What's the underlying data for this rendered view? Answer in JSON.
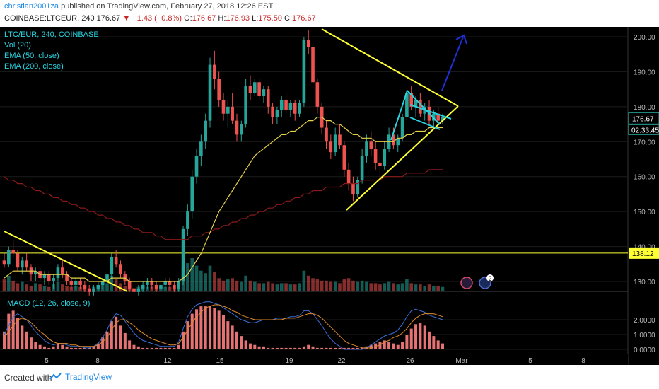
{
  "header": {
    "author": "christian2001za",
    "published": "published on TradingView.com, February 27, 2018 12:26 EST",
    "symbol": "COINBASE:LTCEUR, 240",
    "last": "176.67",
    "change": "▼ −1.43 (−0.8%)",
    "o_label": "O:",
    "o": "176.67",
    "h_label": "H:",
    "h": "176.93",
    "l_label": "L:",
    "l": "175.50",
    "c_label": "C:",
    "c": "176.67"
  },
  "legend": {
    "l1": "LTC/EUR, 240, COINBASE",
    "l2": "Vol (20)",
    "l3": "EMA (50, close)",
    "l4": "EMA (200, close)",
    "macd": "MACD (12, 26, close, 9)"
  },
  "price_axis": {
    "ticks": [
      "200.00",
      "190.00",
      "180.00",
      "170.00",
      "160.00",
      "150.00",
      "140.00",
      "130.00"
    ],
    "current_price": "176.67",
    "countdown": "02:33:45",
    "hline_label": "138.12"
  },
  "macd_axis": {
    "ticks": [
      "2.0000",
      "1.0000",
      "0.0000"
    ]
  },
  "time_axis": {
    "labels": [
      "5",
      "8",
      "12",
      "15",
      "19",
      "22",
      "26",
      "Mar",
      "5",
      "8"
    ]
  },
  "footer": {
    "created": "Created with",
    "brand": "TradingView"
  },
  "colors": {
    "up": "#26a69a",
    "down": "#ef5350",
    "ema50": "#e6d24a",
    "ema200": "#8b1a1a",
    "trend": "#ffff33",
    "flag": "#29d3e0",
    "arrow": "#1f2fd6",
    "macd_hist": "#e57373"
  },
  "chart_data": {
    "type": "candlestick",
    "symbol": "LTC/EUR",
    "ylim": [
      124,
      203
    ],
    "hline": 138.12,
    "candles_ohlc": [
      [
        136,
        138,
        134,
        135
      ],
      [
        135,
        140,
        134,
        139
      ],
      [
        139,
        142,
        137,
        138
      ],
      [
        138,
        139,
        133,
        134
      ],
      [
        134,
        137,
        132,
        136
      ],
      [
        136,
        138,
        133,
        134
      ],
      [
        134,
        135,
        130,
        132
      ],
      [
        132,
        134,
        130,
        133
      ],
      [
        133,
        134,
        130,
        131
      ],
      [
        131,
        133,
        129,
        132
      ],
      [
        132,
        133,
        129,
        130
      ],
      [
        130,
        132,
        128,
        131
      ],
      [
        131,
        135,
        130,
        134
      ],
      [
        134,
        136,
        131,
        132
      ],
      [
        132,
        133,
        129,
        130
      ],
      [
        130,
        131,
        128,
        129
      ],
      [
        129,
        131,
        128,
        130
      ],
      [
        130,
        131,
        128,
        129
      ],
      [
        129,
        130,
        127,
        128
      ],
      [
        128,
        129,
        126,
        127
      ],
      [
        127,
        129,
        126,
        128
      ],
      [
        128,
        130,
        127,
        129
      ],
      [
        129,
        131,
        128,
        130
      ],
      [
        130,
        133,
        129,
        132
      ],
      [
        132,
        138,
        131,
        137
      ],
      [
        137,
        139,
        134,
        135
      ],
      [
        135,
        136,
        131,
        132
      ],
      [
        132,
        133,
        129,
        130
      ],
      [
        130,
        131,
        127,
        128
      ],
      [
        128,
        129,
        126,
        127
      ],
      [
        127,
        129,
        126,
        128
      ],
      [
        128,
        130,
        127,
        129
      ],
      [
        129,
        131,
        128,
        130
      ],
      [
        130,
        131,
        128,
        129
      ],
      [
        129,
        130,
        127,
        128
      ],
      [
        128,
        130,
        127,
        129
      ],
      [
        129,
        131,
        128,
        130
      ],
      [
        130,
        131,
        128,
        129
      ],
      [
        129,
        130,
        127,
        128
      ],
      [
        128,
        131,
        127,
        130
      ],
      [
        130,
        146,
        129,
        145
      ],
      [
        145,
        152,
        143,
        150
      ],
      [
        150,
        162,
        148,
        160
      ],
      [
        160,
        168,
        158,
        166
      ],
      [
        166,
        172,
        163,
        170
      ],
      [
        170,
        178,
        168,
        176
      ],
      [
        176,
        194,
        174,
        192
      ],
      [
        192,
        196,
        185,
        188
      ],
      [
        188,
        190,
        180,
        182
      ],
      [
        182,
        184,
        176,
        178
      ],
      [
        178,
        182,
        174,
        180
      ],
      [
        180,
        184,
        175,
        176
      ],
      [
        176,
        178,
        170,
        172
      ],
      [
        172,
        176,
        170,
        175
      ],
      [
        175,
        188,
        174,
        186
      ],
      [
        186,
        189,
        182,
        184
      ],
      [
        184,
        188,
        183,
        187
      ],
      [
        187,
        188,
        182,
        183
      ],
      [
        183,
        186,
        181,
        185
      ],
      [
        185,
        186,
        178,
        180
      ],
      [
        180,
        181,
        175,
        177
      ],
      [
        177,
        180,
        175,
        179
      ],
      [
        179,
        183,
        177,
        182
      ],
      [
        182,
        184,
        178,
        179
      ],
      [
        179,
        182,
        177,
        181
      ],
      [
        181,
        182,
        176,
        178
      ],
      [
        178,
        182,
        177,
        181
      ],
      [
        181,
        200,
        180,
        199
      ],
      [
        199,
        202,
        195,
        197
      ],
      [
        197,
        199,
        185,
        187
      ],
      [
        187,
        188,
        178,
        180
      ],
      [
        180,
        181,
        172,
        174
      ],
      [
        174,
        176,
        168,
        170
      ],
      [
        170,
        172,
        165,
        167
      ],
      [
        167,
        174,
        166,
        172
      ],
      [
        172,
        175,
        168,
        169
      ],
      [
        169,
        170,
        160,
        162
      ],
      [
        162,
        164,
        156,
        158
      ],
      [
        158,
        160,
        153,
        155
      ],
      [
        155,
        160,
        154,
        159
      ],
      [
        159,
        168,
        158,
        166
      ],
      [
        166,
        172,
        164,
        170
      ],
      [
        170,
        173,
        166,
        168
      ],
      [
        168,
        170,
        162,
        164
      ],
      [
        164,
        166,
        160,
        163
      ],
      [
        163,
        170,
        162,
        168
      ],
      [
        168,
        174,
        167,
        172
      ],
      [
        172,
        174,
        168,
        169
      ],
      [
        169,
        172,
        167,
        171
      ],
      [
        171,
        178,
        170,
        177
      ],
      [
        177,
        185,
        176,
        184
      ],
      [
        184,
        186,
        179,
        180
      ],
      [
        180,
        183,
        177,
        182
      ],
      [
        182,
        184,
        177,
        178
      ],
      [
        178,
        181,
        176,
        180
      ],
      [
        180,
        182,
        175,
        176
      ],
      [
        176,
        179,
        174,
        178
      ],
      [
        178,
        180,
        175,
        176
      ],
      [
        176,
        178,
        175,
        177
      ]
    ],
    "volume": [
      9,
      12,
      8,
      6,
      7,
      5,
      4,
      6,
      5,
      4,
      3,
      5,
      7,
      5,
      4,
      3,
      4,
      3,
      3,
      2,
      3,
      4,
      5,
      6,
      12,
      9,
      6,
      4,
      3,
      2,
      3,
      4,
      3,
      3,
      2,
      3,
      3,
      3,
      2,
      4,
      18,
      22,
      26,
      20,
      16,
      14,
      20,
      15,
      10,
      8,
      9,
      10,
      8,
      7,
      12,
      8,
      7,
      6,
      6,
      7,
      6,
      5,
      6,
      6,
      5,
      5,
      6,
      16,
      12,
      10,
      9,
      8,
      8,
      7,
      7,
      6,
      9,
      10,
      8,
      7,
      8,
      7,
      6,
      6,
      5,
      6,
      7,
      6,
      5,
      6,
      9,
      6,
      5,
      5,
      4,
      5,
      4,
      4,
      3
    ],
    "ema50": [
      131,
      132,
      133,
      133,
      133,
      133,
      133,
      133,
      132,
      132,
      132,
      132,
      132,
      132,
      132,
      131,
      131,
      131,
      131,
      130,
      130,
      130,
      130,
      130,
      131,
      131,
      131,
      131,
      130,
      130,
      130,
      130,
      130,
      130,
      130,
      130,
      130,
      130,
      130,
      130,
      131,
      132,
      134,
      136,
      138,
      141,
      144,
      147,
      150,
      152,
      154,
      156,
      158,
      160,
      162,
      164,
      166,
      167,
      168,
      169,
      170,
      171,
      172,
      172,
      173,
      173,
      174,
      175,
      176,
      176,
      177,
      177,
      176,
      176,
      175,
      175,
      174,
      173,
      172,
      172,
      171,
      171,
      171,
      170,
      170,
      170,
      170,
      170,
      171,
      171,
      172,
      172,
      173,
      173,
      173,
      174,
      174,
      174,
      174
    ],
    "ema200": [
      160,
      159,
      159,
      158,
      158,
      157,
      157,
      156,
      156,
      155,
      155,
      154,
      154,
      153,
      153,
      152,
      152,
      151,
      151,
      150,
      150,
      149,
      149,
      148,
      148,
      147,
      147,
      146,
      146,
      145,
      145,
      144,
      144,
      144,
      143,
      143,
      142,
      142,
      142,
      142,
      142,
      142,
      143,
      143,
      143,
      144,
      144,
      145,
      145,
      146,
      146,
      147,
      147,
      148,
      148,
      149,
      149,
      150,
      150,
      151,
      151,
      152,
      152,
      153,
      153,
      154,
      154,
      155,
      155,
      156,
      156,
      156,
      157,
      157,
      157,
      157,
      158,
      158,
      158,
      158,
      159,
      159,
      159,
      159,
      159,
      160,
      160,
      160,
      160,
      160,
      161,
      161,
      161,
      161,
      161,
      162,
      162,
      162,
      162
    ],
    "macd_hist": [
      1.2,
      2.4,
      2.6,
      2.1,
      1.6,
      1.2,
      0.8,
      0.5,
      0.3,
      0.2,
      0.1,
      0.2,
      0.4,
      0.3,
      0.2,
      0.1,
      0.1,
      0.1,
      0.1,
      0.1,
      0.2,
      0.4,
      0.8,
      1.2,
      1.9,
      2.2,
      1.6,
      1.1,
      0.6,
      0.3,
      0.2,
      0.1,
      0.1,
      0.1,
      0.1,
      0.1,
      0.1,
      0.1,
      0.1,
      0.3,
      1.2,
      1.9,
      2.4,
      2.7,
      2.9,
      2.9,
      2.9,
      2.8,
      2.6,
      2.3,
      1.9,
      1.6,
      1.2,
      0.9,
      0.6,
      0.4,
      0.3,
      0.2,
      0.2,
      0.1,
      0.1,
      0.1,
      0.1,
      0.1,
      0.1,
      0.1,
      0.1,
      0.2,
      0.3,
      0.2,
      0.1,
      0.1,
      0.1,
      0.1,
      0.1,
      0.1,
      0.1,
      0.1,
      0.1,
      0.1,
      0.1,
      0.2,
      0.3,
      0.4,
      0.5,
      0.6,
      0.5,
      0.4,
      0.3,
      0.5,
      1.0,
      1.4,
      1.7,
      1.8,
      1.6,
      1.2,
      0.9,
      0.6,
      0.4
    ],
    "macd_line": [
      1.0,
      1.6,
      2.2,
      2.4,
      2.2,
      2.0,
      1.6,
      1.2,
      0.9,
      0.6,
      0.4,
      0.3,
      0.4,
      0.4,
      0.3,
      0.2,
      0.2,
      0.2,
      0.1,
      0.1,
      0.2,
      0.4,
      0.8,
      1.3,
      2.0,
      2.4,
      2.3,
      1.9,
      1.5,
      1.1,
      0.8,
      0.6,
      0.5,
      0.4,
      0.3,
      0.2,
      0.2,
      0.2,
      0.2,
      0.5,
      1.4,
      2.2,
      2.7,
      3.0,
      3.1,
      3.2,
      3.2,
      3.1,
      3.0,
      2.8,
      2.6,
      2.4,
      2.2,
      2.0,
      1.9,
      1.8,
      1.8,
      1.9,
      2.0,
      2.0,
      2.0,
      2.1,
      2.1,
      2.1,
      2.2,
      2.2,
      2.3,
      2.6,
      2.6,
      2.4,
      2.0,
      1.6,
      1.1,
      0.7,
      0.4,
      0.2,
      0.0,
      0.0,
      0.0,
      0.0,
      0.0,
      0.1,
      0.3,
      0.5,
      0.7,
      0.9,
      1.0,
      1.1,
      1.3,
      1.7,
      2.2,
      2.6,
      2.7,
      2.6,
      2.5,
      2.3,
      2.2,
      2.1,
      2.0
    ],
    "macd_signal": [
      0.8,
      1.2,
      1.6,
      2.0,
      2.1,
      2.0,
      1.8,
      1.5,
      1.2,
      1.0,
      0.7,
      0.5,
      0.4,
      0.4,
      0.4,
      0.3,
      0.3,
      0.2,
      0.2,
      0.2,
      0.2,
      0.3,
      0.5,
      0.8,
      1.3,
      1.8,
      2.0,
      2.0,
      1.8,
      1.6,
      1.3,
      1.1,
      0.9,
      0.7,
      0.6,
      0.5,
      0.4,
      0.3,
      0.3,
      0.4,
      0.8,
      1.3,
      1.8,
      2.2,
      2.5,
      2.8,
      2.9,
      3.0,
      3.0,
      2.9,
      2.8,
      2.6,
      2.5,
      2.3,
      2.2,
      2.1,
      2.0,
      2.0,
      2.0,
      2.0,
      2.0,
      2.0,
      2.0,
      2.1,
      2.1,
      2.1,
      2.2,
      2.3,
      2.4,
      2.4,
      2.3,
      2.1,
      1.8,
      1.5,
      1.2,
      0.9,
      0.6,
      0.4,
      0.3,
      0.2,
      0.1,
      0.1,
      0.1,
      0.2,
      0.3,
      0.5,
      0.6,
      0.8,
      0.9,
      1.1,
      1.4,
      1.8,
      2.1,
      2.3,
      2.4,
      2.4,
      2.4,
      2.3,
      2.2
    ]
  }
}
